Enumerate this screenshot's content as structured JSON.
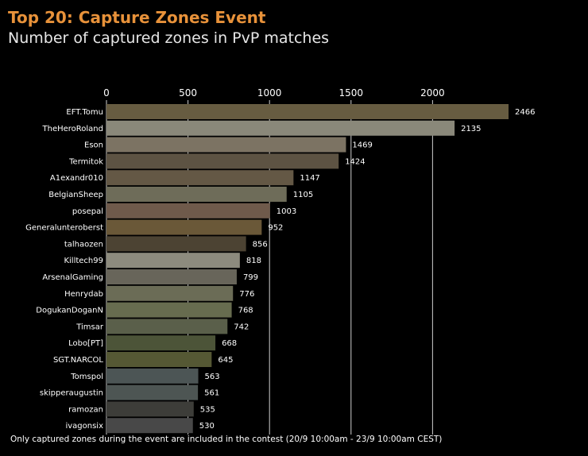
{
  "chart_data": {
    "type": "bar",
    "orientation": "horizontal",
    "title": "Top 20: Capture Zones Event",
    "subtitle": "Number of captured zones in PvP matches",
    "footnote": "Only captured zones during the event are included in the contest (20/9 10:00am - 23/9 10:00am CEST)",
    "xlim": [
      0,
      2466
    ],
    "xticks": [
      0,
      500,
      1000,
      1500,
      2000
    ],
    "grid": true,
    "categories": [
      "EFT.Tomu",
      "TheHeroRoland",
      "Eson",
      "Termitok",
      "A1exandr010",
      "BelgianSheep",
      "posepal",
      "Generalunteroberst",
      "talhaozen",
      "Killtech99",
      "ArsenalGaming",
      "Henrydab",
      "DogukanDoganN",
      "Timsar",
      "Lobo[PT]",
      "SGT.NARCOL",
      "Tomspol",
      "skipperaugustin",
      "ramozan",
      "ivagonsix"
    ],
    "values": [
      2466,
      2135,
      1469,
      1424,
      1147,
      1105,
      1003,
      952,
      856,
      818,
      799,
      776,
      768,
      742,
      668,
      645,
      563,
      561,
      535,
      530
    ],
    "colors": [
      "#675c41",
      "#8a887a",
      "#7c7363",
      "#5d5343",
      "#645845",
      "#6e6c59",
      "#6f5a4b",
      "#6a5838",
      "#4c4333",
      "#8d8b7e",
      "#68655a",
      "#6b6c56",
      "#676c4f",
      "#5a5f4a",
      "#4c5438",
      "#555834",
      "#4c5555",
      "#4d5553",
      "#3d3d39",
      "#484848"
    ]
  }
}
